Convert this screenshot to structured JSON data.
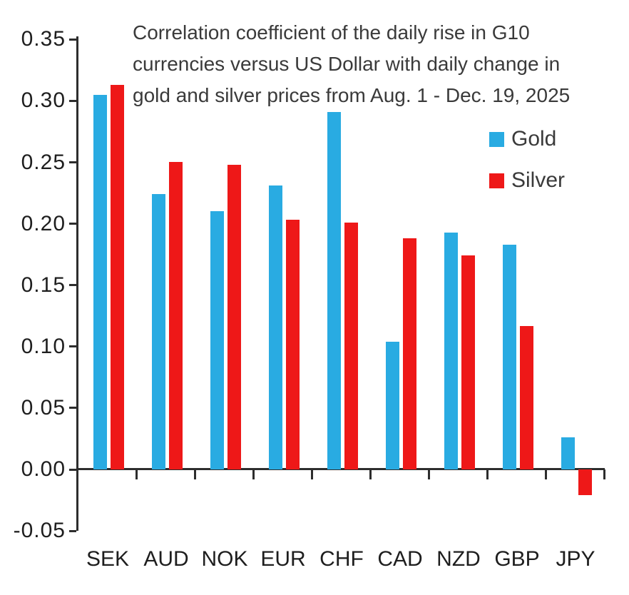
{
  "chart_data": {
    "type": "bar",
    "title": "Correlation coefficient of the daily rise in G10 currencies versus US Dollar with daily change in gold and silver prices from Aug. 1 - Dec. 19, 2025",
    "title_lines": [
      "Correlation coefficient of the daily rise in G10",
      "currencies versus US Dollar with daily change in",
      "gold and silver prices from Aug. 1 - Dec. 19, 2025"
    ],
    "categories": [
      "SEK",
      "AUD",
      "NOK",
      "EUR",
      "CHF",
      "CAD",
      "NZD",
      "GBP",
      "JPY"
    ],
    "series": [
      {
        "name": "Gold",
        "color": "#29ABE2",
        "values": [
          0.305,
          0.224,
          0.21,
          0.231,
          0.291,
          0.104,
          0.193,
          0.183,
          0.026
        ]
      },
      {
        "name": "Silver",
        "color": "#EE1818",
        "values": [
          0.313,
          0.25,
          0.248,
          0.203,
          0.201,
          0.188,
          0.174,
          0.117,
          -0.021
        ]
      }
    ],
    "y_axis": {
      "min": -0.05,
      "max": 0.35,
      "step": 0.05,
      "ticks": [
        "0.35",
        "0.30",
        "0.25",
        "0.20",
        "0.15",
        "0.10",
        "0.05",
        "0.00",
        "-0.05"
      ]
    },
    "legend": {
      "position": "upper-right",
      "entries": [
        {
          "label": "Gold",
          "color": "#29ABE2"
        },
        {
          "label": "Silver",
          "color": "#EE1818"
        }
      ]
    },
    "grid": false,
    "axis_color": "#2d2d2d",
    "text_color": "#1e1e1e"
  }
}
